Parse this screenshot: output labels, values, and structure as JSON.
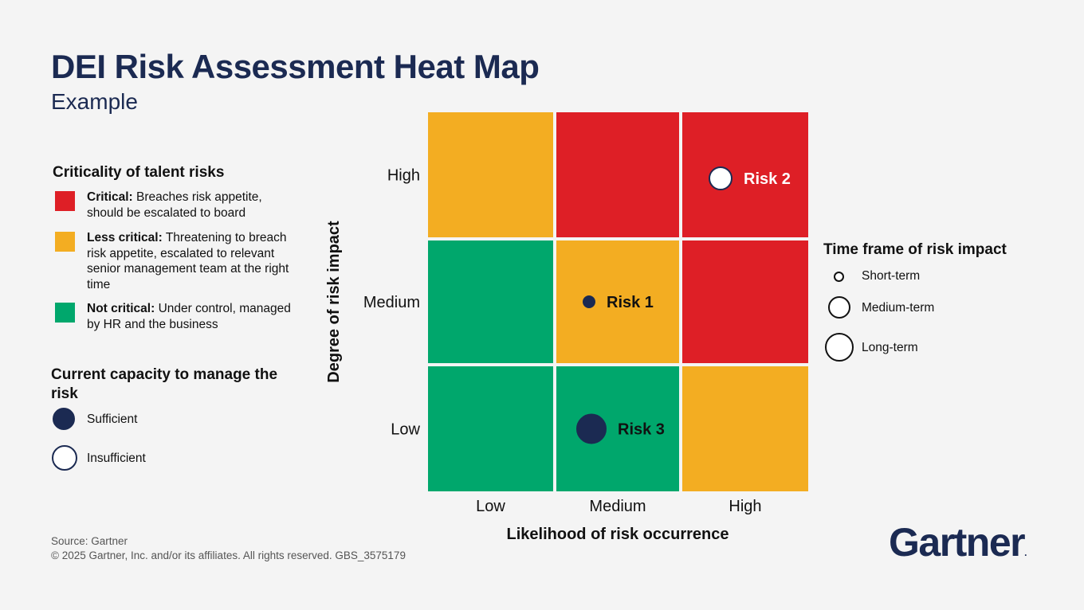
{
  "title": "DEI Risk Assessment Heat Map",
  "subtitle": "Example",
  "criticality_legend": {
    "heading": "Criticality of talent risks",
    "items": [
      {
        "label": "Critical:",
        "description": "Breaches risk appetite, should be escalated to board",
        "color": "#de1f26"
      },
      {
        "label": "Less critical:",
        "description": "Threatening to breach risk appetite, escalated to relevant senior management team at the right time",
        "color": "#f3ad22"
      },
      {
        "label": "Not critical:",
        "description": "Under control, managed by HR and the business",
        "color": "#00a76c"
      }
    ]
  },
  "capacity_legend": {
    "heading": "Current capacity to manage the risk",
    "items": [
      {
        "label": "Sufficient",
        "fill": "#1b2a52"
      },
      {
        "label": "Insufficient",
        "fill": "#ffffff"
      }
    ]
  },
  "timeframe_legend": {
    "heading": "Time frame of risk impact",
    "items": [
      {
        "label": "Short-term",
        "size": "small"
      },
      {
        "label": "Medium-term",
        "size": "medium"
      },
      {
        "label": "Long-term",
        "size": "large"
      }
    ]
  },
  "chart_data": {
    "type": "heatmap",
    "title": "DEI Risk Assessment Heat Map",
    "xlabel": "Likelihood of risk occurrence",
    "ylabel": "Degree of risk impact",
    "x_categories": [
      "Low",
      "Medium",
      "High"
    ],
    "y_categories": [
      "Low",
      "Medium",
      "High"
    ],
    "cells": [
      [
        "Not critical",
        "Not critical",
        "Less critical"
      ],
      [
        "Not critical",
        "Less critical",
        "Critical"
      ],
      [
        "Less critical",
        "Critical",
        "Critical"
      ]
    ],
    "cell_colors": {
      "Critical": "#de1f26",
      "Less critical": "#f3ad22",
      "Not critical": "#00a76c"
    },
    "risks": [
      {
        "label": "Risk 1",
        "likelihood": "Medium",
        "impact": "Medium",
        "capacity": "Sufficient",
        "time_frame": "Short-term"
      },
      {
        "label": "Risk 2",
        "likelihood": "High",
        "impact": "High",
        "capacity": "Insufficient",
        "time_frame": "Medium-term"
      },
      {
        "label": "Risk 3",
        "likelihood": "Medium",
        "impact": "Low",
        "capacity": "Sufficient",
        "time_frame": "Long-term"
      }
    ]
  },
  "footer": {
    "source": "Source: Gartner",
    "copyright": "© 2025 Gartner, Inc. and/or its affiliates. All rights reserved. GBS_3575179"
  },
  "logo": {
    "text": "Gartner",
    "mark": "."
  }
}
